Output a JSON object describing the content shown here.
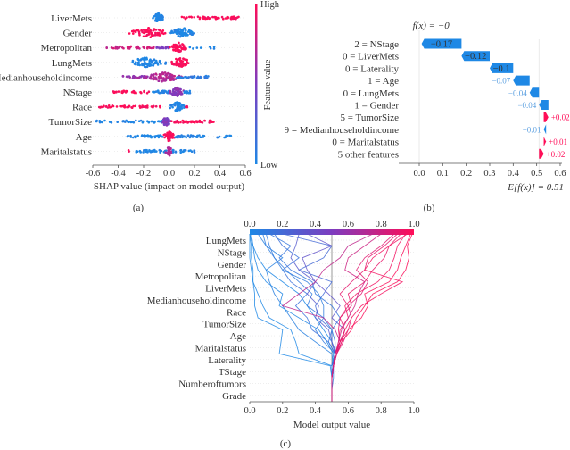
{
  "colors": {
    "low": "#1e88e5",
    "high": "#ff0d57",
    "mid": "#7d3cbf",
    "positive": "#ff0d57",
    "negative": "#1e88e5"
  },
  "chart_data": [
    {
      "panel": "(a)",
      "type": "scatter",
      "subtype": "shap-beeswarm",
      "xlabel": "SHAP value (impact on model output)",
      "xlim": [
        -0.6,
        0.6
      ],
      "xticks": [
        "-0.6",
        "-0.4",
        "-0.2",
        "0.0",
        "0.2",
        "0.4",
        "0.6"
      ],
      "xtick_values": [
        -0.6,
        -0.4,
        -0.2,
        0.0,
        0.2,
        0.4,
        0.6
      ],
      "colorbar": {
        "label": "Feature value",
        "high": "High",
        "low": "Low"
      },
      "features": [
        {
          "name": "LiverMets",
          "clusters": [
            [
              -0.13,
              -0.04,
              0,
              60,
              "dense"
            ],
            [
              0.08,
              0.55,
              1,
              55,
              "sparse"
            ]
          ]
        },
        {
          "name": "Gender",
          "clusters": [
            [
              -0.32,
              0.0,
              1,
              70,
              "dense"
            ],
            [
              0.0,
              0.21,
              0,
              70,
              "dense"
            ]
          ]
        },
        {
          "name": "Metropolitan",
          "clusters": [
            [
              -0.49,
              -0.1,
              0.8,
              40,
              "sparse"
            ],
            [
              -0.1,
              0.0,
              0.5,
              20,
              "sparse"
            ],
            [
              0.0,
              0.15,
              1,
              60,
              "dense"
            ],
            [
              0.15,
              0.36,
              0,
              8,
              "sparse"
            ]
          ]
        },
        {
          "name": "LungMets",
          "clusters": [
            [
              -0.35,
              0.0,
              0,
              75,
              "dense"
            ],
            [
              0.0,
              0.18,
              1,
              55,
              "dense"
            ]
          ]
        },
        {
          "name": "Medianhouseholdincome",
          "clusters": [
            [
              -0.4,
              -0.15,
              0.6,
              25,
              "sparse"
            ],
            [
              -0.2,
              0.12,
              0.7,
              90,
              "dense"
            ],
            [
              0.05,
              0.31,
              0.1,
              40,
              "sparse"
            ]
          ]
        },
        {
          "name": "NStage",
          "clusters": [
            [
              -0.45,
              -0.15,
              1,
              35,
              "sparse"
            ],
            [
              -0.15,
              0.0,
              0,
              25,
              "sparse"
            ],
            [
              0.0,
              0.12,
              0.55,
              60,
              "dense"
            ],
            [
              0.12,
              0.19,
              0,
              10,
              "sparse"
            ]
          ]
        },
        {
          "name": "Race",
          "clusters": [
            [
              -0.55,
              -0.06,
              1,
              50,
              "sparse"
            ],
            [
              0.0,
              0.13,
              0,
              55,
              "dense"
            ],
            [
              0.13,
              0.15,
              1,
              3,
              "sparse"
            ]
          ]
        },
        {
          "name": "TumorSize",
          "clusters": [
            [
              -0.58,
              -0.05,
              0,
              45,
              "sparse"
            ],
            [
              -0.06,
              0.02,
              0.5,
              45,
              "dense"
            ],
            [
              0.02,
              0.35,
              1,
              50,
              "sparse"
            ]
          ]
        },
        {
          "name": "Age",
          "clusters": [
            [
              -0.33,
              -0.05,
              0,
              40,
              "sparse"
            ],
            [
              -0.05,
              0.05,
              1,
              50,
              "dense"
            ],
            [
              0.05,
              0.29,
              0,
              40,
              "sparse"
            ],
            [
              0.37,
              0.49,
              0,
              10,
              "sparse"
            ]
          ]
        },
        {
          "name": "Maritalstatus",
          "clusters": [
            [
              -0.32,
              -0.31,
              1,
              2,
              "sparse"
            ],
            [
              -0.27,
              -0.02,
              0,
              35,
              "sparse"
            ],
            [
              -0.03,
              0.03,
              0.7,
              30,
              "dense"
            ],
            [
              0.03,
              0.2,
              0,
              20,
              "sparse"
            ]
          ]
        }
      ]
    },
    {
      "panel": "(b)",
      "type": "bar",
      "subtype": "shap-waterfall",
      "title": "f(x) = −0",
      "base_label": "E[f(x)] = 0.51",
      "base_value": 0.51,
      "final_value": 0,
      "xlim": [
        -0.03,
        0.63
      ],
      "xticks": [
        "0.0",
        "0.1",
        "0.2",
        "0.3",
        "0.4",
        "0.5",
        "0.6"
      ],
      "xtick_values": [
        0.0,
        0.1,
        0.2,
        0.3,
        0.4,
        0.5,
        0.6
      ],
      "rows": [
        {
          "label": "2 = NStage",
          "value": -0.17,
          "text": "−0.17"
        },
        {
          "label": "0 = LiverMets",
          "value": -0.12,
          "text": "−0.12"
        },
        {
          "label": "0 = Laterality",
          "value": -0.1,
          "text": "−0.1"
        },
        {
          "label": "1 = Age",
          "value": -0.07,
          "text": "−0.07"
        },
        {
          "label": "0 = LungMets",
          "value": -0.04,
          "text": "−0.04"
        },
        {
          "label": "1 = Gender",
          "value": -0.04,
          "text": "−0.04"
        },
        {
          "label": "5 = TumorSize",
          "value": 0.02,
          "text": "+0.02"
        },
        {
          "label": "9 = Medianhouseholdincome",
          "value": -0.01,
          "text": "−0.01"
        },
        {
          "label": "0 = Maritalstatus",
          "value": 0.01,
          "text": "+0.01"
        },
        {
          "label": "5 other features",
          "value": 0.02,
          "text": "+0.02"
        }
      ]
    },
    {
      "panel": "(c)",
      "type": "line",
      "subtype": "shap-decision",
      "xlabel": "Model output value",
      "xlim": [
        0,
        1
      ],
      "xticks": [
        "0.0",
        "0.2",
        "0.4",
        "0.6",
        "0.8",
        "1.0"
      ],
      "xtick_values": [
        0,
        0.2,
        0.4,
        0.6,
        0.8,
        1.0
      ],
      "base_value": 0.5,
      "features_top_to_bottom": [
        "LungMets",
        "NStage",
        "Gender",
        "Metropolitan",
        "LiverMets",
        "Medianhouseholdincome",
        "Race",
        "TumorSize",
        "Age",
        "Maritalstatus",
        "Laterality",
        "TStage",
        "Numberoftumors",
        "Grade"
      ],
      "paths_bottom_to_top": [
        [
          0.5,
          0.5,
          0.5,
          0.5,
          0.52,
          0.5,
          0.45,
          0.4,
          0.35,
          0.3,
          0.2,
          0.1,
          0.05,
          0.02,
          0.0
        ],
        [
          0.5,
          0.5,
          0.5,
          0.49,
          0.18,
          0.19,
          0.2,
          0.05,
          0.03,
          0.03,
          0.02,
          0.01,
          0.0,
          0.0,
          0.0
        ],
        [
          0.5,
          0.5,
          0.5,
          0.51,
          0.5,
          0.4,
          0.3,
          0.25,
          0.2,
          0.15,
          0.12,
          0.1,
          0.2,
          0.1,
          0.05
        ],
        [
          0.5,
          0.5,
          0.51,
          0.51,
          0.52,
          0.45,
          0.4,
          0.45,
          0.35,
          0.38,
          0.3,
          0.22,
          0.15,
          0.12,
          0.1
        ],
        [
          0.5,
          0.5,
          0.5,
          0.51,
          0.52,
          0.48,
          0.38,
          0.35,
          0.28,
          0.35,
          0.25,
          0.2,
          0.3,
          0.2,
          0.15
        ],
        [
          0.5,
          0.5,
          0.5,
          0.5,
          0.53,
          0.5,
          0.5,
          0.42,
          0.4,
          0.45,
          0.5,
          0.3,
          0.45,
          0.5,
          0.2
        ],
        [
          0.5,
          0.5,
          0.5,
          0.5,
          0.51,
          0.47,
          0.42,
          0.3,
          0.18,
          0.2,
          0.1,
          0.05,
          0.03,
          0.02,
          0.01
        ],
        [
          0.5,
          0.5,
          0.5,
          0.51,
          0.52,
          0.5,
          0.48,
          0.4,
          0.42,
          0.35,
          0.4,
          0.3,
          0.25,
          0.28,
          0.3
        ],
        [
          0.5,
          0.5,
          0.5,
          0.5,
          0.52,
          0.52,
          0.5,
          0.45,
          0.45,
          0.42,
          0.35,
          0.2,
          0.15,
          0.1,
          0.08
        ],
        [
          0.5,
          0.5,
          0.5,
          0.5,
          0.3,
          0.28,
          0.25,
          0.12,
          0.08,
          0.05,
          0.02,
          0.02,
          0.01,
          0.01,
          0.0
        ],
        [
          0.5,
          0.5,
          0.5,
          0.51,
          0.52,
          0.55,
          0.58,
          0.5,
          0.55,
          0.48,
          0.4,
          0.35,
          0.32,
          0.5,
          0.35
        ],
        [
          0.5,
          0.5,
          0.5,
          0.5,
          0.52,
          0.48,
          0.5,
          0.55,
          0.5,
          0.4,
          0.38,
          0.25,
          0.18,
          0.25,
          0.12
        ],
        [
          0.5,
          0.5,
          0.5,
          0.51,
          0.52,
          0.55,
          0.6,
          0.68,
          0.72,
          0.7,
          0.85,
          0.9,
          0.92,
          0.95,
          0.98
        ],
        [
          0.5,
          0.5,
          0.5,
          0.51,
          0.53,
          0.56,
          0.62,
          0.65,
          0.7,
          0.75,
          0.9,
          0.95,
          0.97,
          0.96,
          0.99
        ],
        [
          0.5,
          0.5,
          0.5,
          0.51,
          0.53,
          0.54,
          0.55,
          0.6,
          0.58,
          0.65,
          0.78,
          0.85,
          0.88,
          0.9,
          0.95
        ],
        [
          0.5,
          0.5,
          0.5,
          0.51,
          0.52,
          0.55,
          0.54,
          0.55,
          0.62,
          0.6,
          0.7,
          0.75,
          0.82,
          0.85,
          0.92
        ],
        [
          0.5,
          0.5,
          0.5,
          0.51,
          0.53,
          0.57,
          0.6,
          0.62,
          0.6,
          0.68,
          0.72,
          0.65,
          0.7,
          0.8,
          0.88
        ],
        [
          0.5,
          0.5,
          0.5,
          0.51,
          0.53,
          0.55,
          0.52,
          0.45,
          0.2,
          0.3,
          0.4,
          0.45,
          0.55,
          0.6,
          0.75
        ],
        [
          0.5,
          0.5,
          0.5,
          0.51,
          0.52,
          0.55,
          0.58,
          0.62,
          0.68,
          0.8,
          0.93,
          0.7,
          0.75,
          0.85,
          0.96
        ],
        [
          0.5,
          0.5,
          0.5,
          0.51,
          0.53,
          0.56,
          0.58,
          0.55,
          0.6,
          0.55,
          0.62,
          0.7,
          0.72,
          0.82,
          0.9
        ],
        [
          0.5,
          0.5,
          0.5,
          0.51,
          0.52,
          0.54,
          0.56,
          0.6,
          0.64,
          0.66,
          0.7,
          0.58,
          0.6,
          0.7,
          0.8
        ]
      ]
    }
  ]
}
